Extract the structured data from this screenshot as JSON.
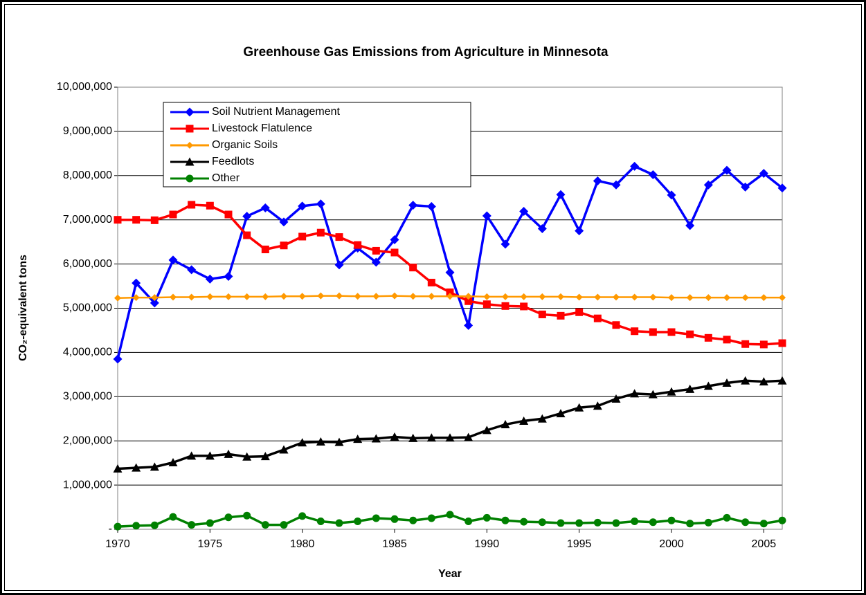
{
  "chart_data": {
    "type": "line",
    "title": "Greenhouse Gas Emissions from Agriculture in Minnesota",
    "x_label": "Year",
    "y_label": "CO₂-equivalent tons",
    "x": [
      1970,
      1971,
      1972,
      1973,
      1974,
      1975,
      1976,
      1977,
      1978,
      1979,
      1980,
      1981,
      1982,
      1983,
      1984,
      1985,
      1986,
      1987,
      1988,
      1989,
      1990,
      1991,
      1992,
      1993,
      1994,
      1995,
      1996,
      1997,
      1998,
      1999,
      2000,
      2001,
      2002,
      2003,
      2004,
      2005,
      2006
    ],
    "xlim": [
      1970,
      2006
    ],
    "xticks": [
      1970,
      1975,
      1980,
      1985,
      1990,
      1995,
      2000,
      2005
    ],
    "ylim": [
      0,
      10000000
    ],
    "yticks": [
      {
        "value": 0,
        "label": "-"
      },
      {
        "value": 1000000,
        "label": "1,000,000"
      },
      {
        "value": 2000000,
        "label": "2,000,000"
      },
      {
        "value": 3000000,
        "label": "3,000,000"
      },
      {
        "value": 4000000,
        "label": "4,000,000"
      },
      {
        "value": 5000000,
        "label": "5,000,000"
      },
      {
        "value": 6000000,
        "label": "6,000,000"
      },
      {
        "value": 7000000,
        "label": "7,000,000"
      },
      {
        "value": 8000000,
        "label": "8,000,000"
      },
      {
        "value": 9000000,
        "label": "9,000,000"
      },
      {
        "value": 10000000,
        "label": "10,000,000"
      }
    ],
    "grid": true,
    "legend": "upper left",
    "series": [
      {
        "name": "Soil Nutrient Management",
        "color": "#0000ff",
        "marker": "diamond",
        "values": [
          3850000,
          5570000,
          5120000,
          6090000,
          5870000,
          5660000,
          5720000,
          7080000,
          7270000,
          6950000,
          7310000,
          7360000,
          5980000,
          6360000,
          6040000,
          6550000,
          7330000,
          7300000,
          5810000,
          4610000,
          7090000,
          6450000,
          7190000,
          6800000,
          7570000,
          6750000,
          7880000,
          7790000,
          8210000,
          8020000,
          7560000,
          6870000,
          7790000,
          8120000,
          7740000,
          8050000,
          7720000
        ]
      },
      {
        "name": "Livestock Flatulence",
        "color": "#ff0000",
        "marker": "square",
        "values": [
          7000000,
          7000000,
          6990000,
          7120000,
          7340000,
          7320000,
          7120000,
          6650000,
          6330000,
          6420000,
          6620000,
          6710000,
          6610000,
          6430000,
          6300000,
          6260000,
          5920000,
          5580000,
          5360000,
          5160000,
          5090000,
          5050000,
          5040000,
          4860000,
          4830000,
          4910000,
          4770000,
          4620000,
          4480000,
          4460000,
          4460000,
          4410000,
          4330000,
          4290000,
          4190000,
          4180000,
          4210000
        ]
      },
      {
        "name": "Organic Soils",
        "color": "#ff9900",
        "marker": "diamond",
        "values": [
          5230000,
          5240000,
          5240000,
          5250000,
          5250000,
          5260000,
          5260000,
          5260000,
          5260000,
          5270000,
          5270000,
          5280000,
          5280000,
          5270000,
          5270000,
          5280000,
          5270000,
          5270000,
          5270000,
          5270000,
          5260000,
          5260000,
          5260000,
          5260000,
          5260000,
          5250000,
          5250000,
          5250000,
          5250000,
          5250000,
          5240000,
          5240000,
          5240000,
          5240000,
          5240000,
          5240000,
          5240000
        ]
      },
      {
        "name": "Feedlots",
        "color": "#000000",
        "marker": "triangle",
        "values": [
          1370000,
          1390000,
          1410000,
          1510000,
          1660000,
          1660000,
          1700000,
          1640000,
          1650000,
          1800000,
          1960000,
          1980000,
          1970000,
          2040000,
          2050000,
          2090000,
          2060000,
          2070000,
          2070000,
          2080000,
          2240000,
          2370000,
          2450000,
          2500000,
          2620000,
          2750000,
          2790000,
          2950000,
          3070000,
          3050000,
          3110000,
          3170000,
          3240000,
          3310000,
          3360000,
          3340000,
          3360000
        ]
      },
      {
        "name": "Other",
        "color": "#008000",
        "marker": "circle",
        "values": [
          60000,
          80000,
          90000,
          280000,
          100000,
          140000,
          270000,
          310000,
          100000,
          100000,
          300000,
          180000,
          140000,
          180000,
          250000,
          230000,
          200000,
          250000,
          330000,
          180000,
          260000,
          200000,
          170000,
          160000,
          140000,
          140000,
          150000,
          140000,
          180000,
          160000,
          200000,
          130000,
          150000,
          260000,
          160000,
          130000,
          200000
        ]
      }
    ]
  }
}
